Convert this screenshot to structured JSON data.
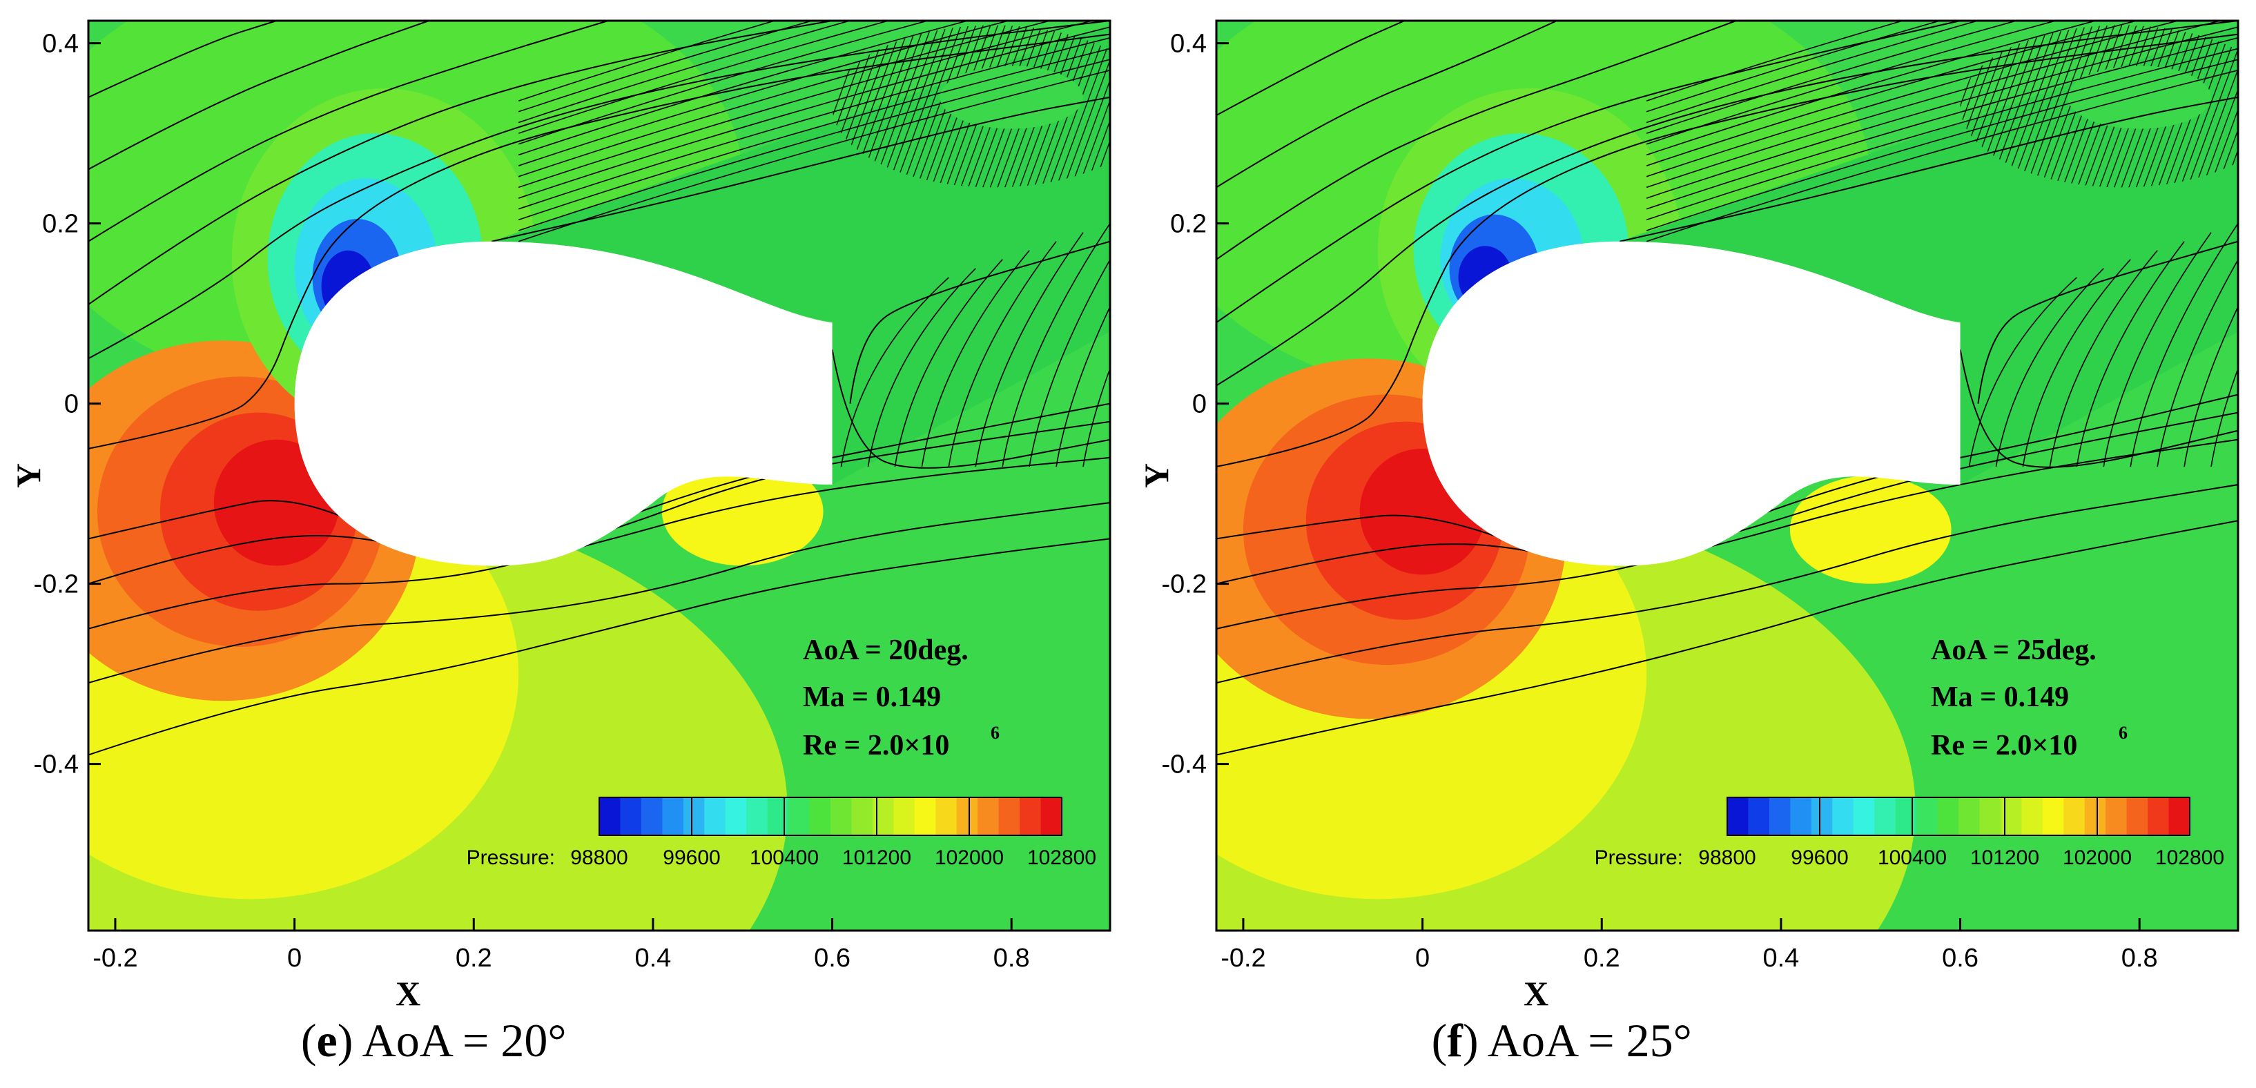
{
  "colors": {
    "background_field": "#3ad84a",
    "axis": "#000000",
    "streamline": "#000000",
    "body": "#ffffff",
    "colorbar": [
      "#0a16d6",
      "#0f3ee8",
      "#1a66f0",
      "#2090f4",
      "#2bb6f2",
      "#33dcef",
      "#36f2e0",
      "#33f0b0",
      "#2ee98a",
      "#3ae45e",
      "#4de33c",
      "#6ee632",
      "#92ea2a",
      "#b6ef24",
      "#d8f41c",
      "#f6f717",
      "#f8d81a",
      "#f8b21e",
      "#f88b1f",
      "#f4641c",
      "#f0381a",
      "#e61414"
    ]
  },
  "chart_data": [
    {
      "type": "contour",
      "panel_label": "(e) AoA = 20°",
      "panel_letter": "e",
      "panel_title": "AoA = 20°",
      "xlabel": "X",
      "ylabel": "Y",
      "xlim": [
        -0.23,
        0.91
      ],
      "ylim": [
        -0.585,
        0.425
      ],
      "xticks": [
        -0.2,
        0,
        0.2,
        0.4,
        0.6,
        0.8
      ],
      "xtick_labels": [
        "-0.2",
        "0",
        "0.2",
        "0.4",
        "0.6",
        "0.8"
      ],
      "yticks": [
        -0.4,
        -0.2,
        0,
        0.2,
        0.4
      ],
      "ytick_labels": [
        "-0.4",
        "-0.2",
        "0",
        "0.2",
        "0.4"
      ],
      "annotations": [
        "AoA = 20deg.",
        "Ma = 0.149",
        "Re = 2.0×10",
        "6"
      ],
      "colorbar": {
        "label": "Pressure:",
        "range": [
          98800,
          102800
        ],
        "tick_values": [
          98800,
          99600,
          100400,
          101200,
          102000,
          102800
        ],
        "tick_labels": [
          "98800",
          "99600",
          "100400",
          "101200",
          "102000",
          "102800"
        ]
      },
      "contours": [
        {
          "cx": -0.08,
          "cy": -0.13,
          "rx": 0.22,
          "ry": 0.2,
          "level": 102200
        },
        {
          "cx": -0.06,
          "cy": -0.12,
          "rx": 0.16,
          "ry": 0.15,
          "level": 102350
        },
        {
          "cx": -0.04,
          "cy": -0.12,
          "rx": 0.11,
          "ry": 0.11,
          "level": 102500
        },
        {
          "cx": -0.02,
          "cy": -0.11,
          "rx": 0.07,
          "ry": 0.07,
          "level": 102650
        },
        {
          "cx": 0.0,
          "cy": -0.1,
          "rx": 0.035,
          "ry": 0.04,
          "level": 102800
        },
        {
          "cx": 0.1,
          "cy": 0.16,
          "rx": 0.17,
          "ry": 0.19,
          "level": 100800
        },
        {
          "cx": 0.09,
          "cy": 0.16,
          "rx": 0.12,
          "ry": 0.14,
          "level": 100200
        },
        {
          "cx": 0.08,
          "cy": 0.15,
          "rx": 0.08,
          "ry": 0.1,
          "level": 99800
        },
        {
          "cx": 0.07,
          "cy": 0.14,
          "rx": 0.05,
          "ry": 0.065,
          "level": 99300
        },
        {
          "cx": 0.06,
          "cy": 0.13,
          "rx": 0.03,
          "ry": 0.04,
          "level": 98800
        },
        {
          "cx": 0.5,
          "cy": -0.12,
          "rx": 0.09,
          "ry": 0.06,
          "level": 101700
        }
      ],
      "streamlines": [
        [
          [
            -0.23,
            -0.39
          ],
          [
            -0.05,
            -0.33
          ],
          [
            0.15,
            -0.3
          ],
          [
            0.35,
            -0.25
          ],
          [
            0.55,
            -0.2
          ],
          [
            0.75,
            -0.17
          ],
          [
            0.91,
            -0.15
          ]
        ],
        [
          [
            -0.23,
            -0.31
          ],
          [
            -0.02,
            -0.25
          ],
          [
            0.2,
            -0.24
          ],
          [
            0.4,
            -0.21
          ],
          [
            0.6,
            -0.15
          ],
          [
            0.91,
            -0.11
          ]
        ],
        [
          [
            -0.23,
            -0.25
          ],
          [
            -0.05,
            -0.2
          ],
          [
            0.15,
            -0.2
          ],
          [
            0.32,
            -0.16
          ],
          [
            0.5,
            -0.11
          ],
          [
            0.7,
            -0.08
          ],
          [
            0.91,
            -0.06
          ]
        ],
        [
          [
            -0.23,
            -0.2
          ],
          [
            -0.1,
            -0.16
          ],
          [
            0.05,
            -0.14
          ],
          [
            0.2,
            -0.18
          ],
          [
            0.33,
            -0.15
          ],
          [
            0.52,
            -0.08
          ],
          [
            0.7,
            -0.05
          ],
          [
            0.91,
            -0.02
          ]
        ],
        [
          [
            -0.23,
            -0.15
          ],
          [
            -0.1,
            -0.12
          ],
          [
            0.0,
            -0.1
          ],
          [
            0.15,
            -0.17
          ],
          [
            0.3,
            -0.15
          ],
          [
            0.5,
            -0.08
          ],
          [
            0.7,
            -0.04
          ],
          [
            0.91,
            0.0
          ]
        ],
        [
          [
            -0.23,
            -0.05
          ],
          [
            -0.08,
            -0.02
          ],
          [
            -0.03,
            0.02
          ],
          [
            0.0,
            0.1
          ],
          [
            0.05,
            0.2
          ],
          [
            0.2,
            0.28
          ],
          [
            0.4,
            0.33
          ],
          [
            0.6,
            0.37
          ],
          [
            0.91,
            0.41
          ]
        ],
        [
          [
            -0.23,
            0.05
          ],
          [
            -0.1,
            0.12
          ],
          [
            0.0,
            0.2
          ],
          [
            0.1,
            0.25
          ],
          [
            0.25,
            0.31
          ],
          [
            0.45,
            0.36
          ],
          [
            0.7,
            0.4
          ],
          [
            0.91,
            0.425
          ]
        ],
        [
          [
            -0.23,
            0.11
          ],
          [
            -0.1,
            0.2
          ],
          [
            0.05,
            0.28
          ],
          [
            0.2,
            0.34
          ],
          [
            0.4,
            0.39
          ],
          [
            0.6,
            0.425
          ]
        ],
        [
          [
            -0.23,
            0.18
          ],
          [
            -0.1,
            0.26
          ],
          [
            0.05,
            0.33
          ],
          [
            0.2,
            0.38
          ],
          [
            0.35,
            0.425
          ]
        ],
        [
          [
            -0.23,
            0.26
          ],
          [
            -0.1,
            0.33
          ],
          [
            0.05,
            0.39
          ],
          [
            0.15,
            0.425
          ]
        ],
        [
          [
            -0.23,
            0.34
          ],
          [
            -0.1,
            0.4
          ],
          [
            -0.02,
            0.425
          ]
        ],
        [
          [
            0.22,
            0.18
          ],
          [
            0.4,
            0.22
          ],
          [
            0.6,
            0.27
          ],
          [
            0.8,
            0.32
          ],
          [
            0.91,
            0.34
          ]
        ],
        [
          [
            0.6,
            0.06
          ],
          [
            0.62,
            -0.05
          ],
          [
            0.7,
            -0.08
          ],
          [
            0.91,
            -0.04
          ]
        ],
        [
          [
            0.62,
            0.0
          ],
          [
            0.63,
            0.08
          ],
          [
            0.7,
            0.12
          ],
          [
            0.91,
            0.18
          ]
        ]
      ]
    },
    {
      "type": "contour",
      "panel_label": "(f) AoA = 25°",
      "panel_letter": "f",
      "panel_title": "AoA = 25°",
      "xlabel": "X",
      "ylabel": "Y",
      "xlim": [
        -0.23,
        0.91
      ],
      "ylim": [
        -0.585,
        0.425
      ],
      "xticks": [
        -0.2,
        0,
        0.2,
        0.4,
        0.6,
        0.8
      ],
      "xtick_labels": [
        "-0.2",
        "0",
        "0.2",
        "0.4",
        "0.6",
        "0.8"
      ],
      "yticks": [
        -0.4,
        -0.2,
        0,
        0.2,
        0.4
      ],
      "ytick_labels": [
        "-0.4",
        "-0.2",
        "0",
        "0.2",
        "0.4"
      ],
      "annotations": [
        "AoA = 25deg.",
        "Ma = 0.149",
        "Re = 2.0×10",
        "6"
      ],
      "colorbar": {
        "label": "Pressure:",
        "range": [
          98800,
          102800
        ],
        "tick_values": [
          98800,
          99600,
          100400,
          101200,
          102000,
          102800
        ],
        "tick_labels": [
          "98800",
          "99600",
          "100400",
          "101200",
          "102000",
          "102800"
        ]
      },
      "contours": [
        {
          "cx": -0.06,
          "cy": -0.15,
          "rx": 0.22,
          "ry": 0.2,
          "level": 102200
        },
        {
          "cx": -0.04,
          "cy": -0.14,
          "rx": 0.16,
          "ry": 0.15,
          "level": 102350
        },
        {
          "cx": -0.02,
          "cy": -0.13,
          "rx": 0.11,
          "ry": 0.11,
          "level": 102500
        },
        {
          "cx": 0.0,
          "cy": -0.12,
          "rx": 0.07,
          "ry": 0.07,
          "level": 102650
        },
        {
          "cx": 0.02,
          "cy": -0.12,
          "rx": 0.035,
          "ry": 0.04,
          "level": 102800
        },
        {
          "cx": 0.12,
          "cy": 0.17,
          "rx": 0.17,
          "ry": 0.18,
          "level": 100800
        },
        {
          "cx": 0.11,
          "cy": 0.17,
          "rx": 0.12,
          "ry": 0.13,
          "level": 100200
        },
        {
          "cx": 0.1,
          "cy": 0.16,
          "rx": 0.08,
          "ry": 0.09,
          "level": 99800
        },
        {
          "cx": 0.08,
          "cy": 0.15,
          "rx": 0.05,
          "ry": 0.06,
          "level": 99300
        },
        {
          "cx": 0.07,
          "cy": 0.14,
          "rx": 0.03,
          "ry": 0.035,
          "level": 98800
        },
        {
          "cx": 0.5,
          "cy": -0.14,
          "rx": 0.09,
          "ry": 0.06,
          "level": 101700
        }
      ],
      "streamlines": [
        [
          [
            -0.23,
            -0.39
          ],
          [
            -0.05,
            -0.35
          ],
          [
            0.15,
            -0.31
          ],
          [
            0.35,
            -0.26
          ],
          [
            0.55,
            -0.2
          ],
          [
            0.75,
            -0.16
          ],
          [
            0.91,
            -0.13
          ]
        ],
        [
          [
            -0.23,
            -0.31
          ],
          [
            -0.02,
            -0.26
          ],
          [
            0.2,
            -0.24
          ],
          [
            0.4,
            -0.2
          ],
          [
            0.6,
            -0.14
          ],
          [
            0.91,
            -0.09
          ]
        ],
        [
          [
            -0.23,
            -0.25
          ],
          [
            -0.05,
            -0.21
          ],
          [
            0.15,
            -0.2
          ],
          [
            0.32,
            -0.16
          ],
          [
            0.5,
            -0.11
          ],
          [
            0.7,
            -0.07
          ],
          [
            0.91,
            -0.04
          ]
        ],
        [
          [
            -0.23,
            -0.2
          ],
          [
            -0.1,
            -0.17
          ],
          [
            0.05,
            -0.15
          ],
          [
            0.2,
            -0.18
          ],
          [
            0.33,
            -0.15
          ],
          [
            0.52,
            -0.09
          ],
          [
            0.7,
            -0.05
          ],
          [
            0.91,
            -0.01
          ]
        ],
        [
          [
            -0.23,
            -0.15
          ],
          [
            -0.1,
            -0.13
          ],
          [
            0.0,
            -0.12
          ],
          [
            0.15,
            -0.17
          ],
          [
            0.3,
            -0.15
          ],
          [
            0.5,
            -0.08
          ],
          [
            0.7,
            -0.04
          ],
          [
            0.91,
            0.01
          ]
        ],
        [
          [
            -0.23,
            -0.07
          ],
          [
            -0.08,
            -0.04
          ],
          [
            -0.03,
            0.02
          ],
          [
            0.0,
            0.1
          ],
          [
            0.05,
            0.2
          ],
          [
            0.2,
            0.28
          ],
          [
            0.4,
            0.33
          ],
          [
            0.6,
            0.37
          ],
          [
            0.91,
            0.41
          ]
        ],
        [
          [
            -0.23,
            0.02
          ],
          [
            -0.1,
            0.1
          ],
          [
            0.0,
            0.19
          ],
          [
            0.1,
            0.25
          ],
          [
            0.25,
            0.31
          ],
          [
            0.45,
            0.36
          ],
          [
            0.7,
            0.4
          ],
          [
            0.91,
            0.425
          ]
        ],
        [
          [
            -0.23,
            0.09
          ],
          [
            -0.1,
            0.18
          ],
          [
            0.05,
            0.27
          ],
          [
            0.2,
            0.33
          ],
          [
            0.4,
            0.38
          ],
          [
            0.6,
            0.425
          ]
        ],
        [
          [
            -0.23,
            0.16
          ],
          [
            -0.1,
            0.25
          ],
          [
            0.05,
            0.32
          ],
          [
            0.2,
            0.37
          ],
          [
            0.35,
            0.425
          ]
        ],
        [
          [
            -0.23,
            0.24
          ],
          [
            -0.1,
            0.32
          ],
          [
            0.05,
            0.38
          ],
          [
            0.15,
            0.425
          ]
        ],
        [
          [
            -0.23,
            0.32
          ],
          [
            -0.1,
            0.39
          ],
          [
            -0.02,
            0.425
          ]
        ],
        [
          [
            0.22,
            0.18
          ],
          [
            0.4,
            0.22
          ],
          [
            0.6,
            0.27
          ],
          [
            0.8,
            0.32
          ],
          [
            0.91,
            0.34
          ]
        ],
        [
          [
            0.6,
            0.06
          ],
          [
            0.62,
            -0.05
          ],
          [
            0.7,
            -0.08
          ],
          [
            0.91,
            -0.03
          ]
        ],
        [
          [
            0.62,
            0.0
          ],
          [
            0.63,
            0.08
          ],
          [
            0.7,
            0.12
          ],
          [
            0.91,
            0.18
          ]
        ]
      ]
    }
  ]
}
